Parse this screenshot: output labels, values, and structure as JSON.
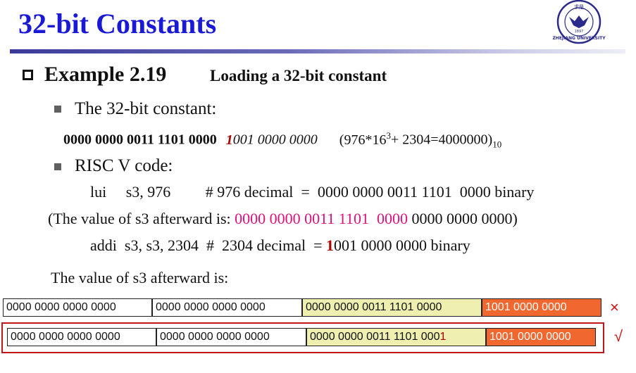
{
  "slide": {
    "title": "32-bit Constants",
    "example_label": "Example 2.19",
    "example_subtitle": "Loading a 32-bit constant",
    "constant_intro": "The 32-bit constant:",
    "constant_bits_black": "0000 0000 0011 1101 0000",
    "constant_bit_red": "1",
    "constant_bits_italic": "001 0000 0000",
    "constant_formula": "(976*16",
    "constant_formula_exp": "3",
    "constant_formula_rest": "+ 2304=4000000)",
    "constant_formula_sub": "10",
    "risc_label": "RISC V code:",
    "lui_line": "lui     s3, 976         # 976 decimal  =  0000 0000 0011 1101  0000 binary",
    "after_lui_prefix": "(The value of s3 afterward is: ",
    "after_lui_pink": "0000 0000 0011 1101  0000",
    "after_lui_rest": " 0000 0000 0000)",
    "addi_prefix": "addi  s3, s3, 2304  #  2304 decimal  = ",
    "addi_red": "1",
    "addi_rest": "001 0000 0000 binary",
    "afterward_label": "The value of s3 afterward is:"
  },
  "table": {
    "rows": [
      {
        "cells": [
          "0000 0000 0000 0000",
          "0000 0000 0000 0000",
          "0000 0000 0011 1101 0000",
          "1001 0000 0000"
        ],
        "cell3_red_suffix": "",
        "mark": "×"
      },
      {
        "cells": [
          "0000 0000 0000 0000",
          "0000 0000 0000 0000",
          "0000 0000 0011 1101 000",
          "1001 0000 0000"
        ],
        "cell3_red_suffix": "1",
        "mark": "√"
      }
    ]
  },
  "colors": {
    "title_blue": "#1a1ad6",
    "highlight_pink": "#e0107a",
    "correction_red": "#c01818",
    "cell_yellow": "#efefb0",
    "cell_orange": "#f06830"
  },
  "logo": {
    "icon": "zhejiang-university-seal-icon",
    "text": "ZHEJIANG UNIVERSITY",
    "year": "1897"
  }
}
